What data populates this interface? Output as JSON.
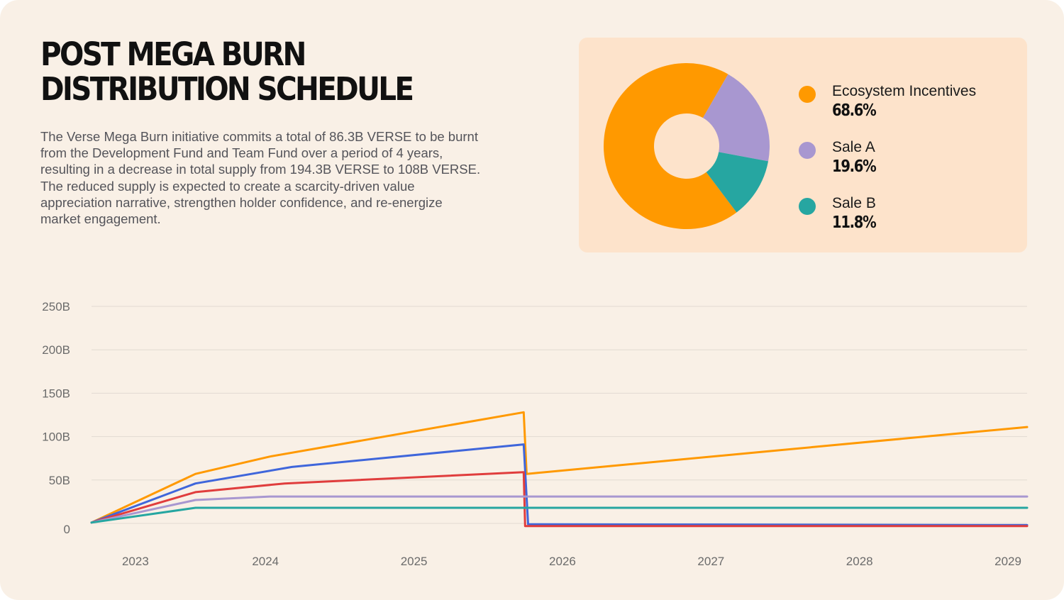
{
  "header": {
    "title_line1": "POST MEGA BURN",
    "title_line2": "DISTRIBUTION SCHEDULE",
    "description": "The Verse Mega Burn initiative commits a total of 86.3B VERSE to be burnt from the Development Fund and Team Fund over a period of 4 years, resulting in a decrease in total supply from 194.3B VERSE to 108B VERSE. The reduced supply is expected to create a scarcity-driven value appreciation narrative, strengthen holder confidence, and re-energize market engagement."
  },
  "colors": {
    "background": "#f9f0e6",
    "panel": "#fde3cb",
    "orange": "#ff9900",
    "purple": "#a897d0",
    "teal": "#26a6a1",
    "blue": "#3f66db",
    "red": "#e03d3d",
    "grid": "#e2dad1"
  },
  "chart_data": [
    {
      "type": "pie",
      "donut": true,
      "slices": [
        {
          "label": "Ecosystem Incentives",
          "value": 68.6,
          "value_label": "68.6%",
          "color": "#ff9900"
        },
        {
          "label": "Sale A",
          "value": 19.6,
          "value_label": "19.6%",
          "color": "#a897d0"
        },
        {
          "label": "Sale B",
          "value": 11.8,
          "value_label": "11.8%",
          "color": "#26a6a1"
        }
      ]
    },
    {
      "type": "line",
      "y_ticks": [
        0,
        50,
        100,
        150,
        200,
        250
      ],
      "y_tick_labels": [
        "0",
        "50B",
        "100B",
        "150B",
        "200B",
        "250B"
      ],
      "ylim": [
        0,
        250
      ],
      "x_tick_years": [
        2023,
        2024,
        2025,
        2026,
        2027,
        2028,
        2029
      ],
      "x_tick_labels": [
        "2023",
        "2024",
        "2025",
        "2026",
        "2027",
        "2028",
        "2029"
      ],
      "xlim": [
        2022.8,
        2029.1
      ],
      "grid": true,
      "series": [
        {
          "name": "Orange series",
          "color": "#ff9900",
          "x": [
            2022.8,
            2023.5,
            2024.0,
            2025.71,
            2025.73,
            2029.1
          ],
          "y": [
            1,
            57,
            77,
            128,
            57,
            111
          ]
        },
        {
          "name": "Blue series",
          "color": "#3f66db",
          "x": [
            2022.8,
            2023.5,
            2024.15,
            2025.71,
            2025.74,
            2029.1
          ],
          "y": [
            1,
            46,
            65,
            91,
            -1,
            -2
          ]
        },
        {
          "name": "Red series",
          "color": "#e03d3d",
          "x": [
            2022.8,
            2023.5,
            2024.1,
            2025.71,
            2025.72,
            2029.1
          ],
          "y": [
            1,
            36,
            46,
            59,
            -3,
            -3
          ]
        },
        {
          "name": "Purple series",
          "color": "#a897d0",
          "x": [
            2022.8,
            2023.5,
            2024.0,
            2029.1
          ],
          "y": [
            1,
            27,
            31,
            31
          ]
        },
        {
          "name": "Teal series",
          "color": "#26a6a1",
          "x": [
            2022.8,
            2023.5,
            2029.1
          ],
          "y": [
            1,
            18,
            18
          ]
        }
      ]
    }
  ]
}
